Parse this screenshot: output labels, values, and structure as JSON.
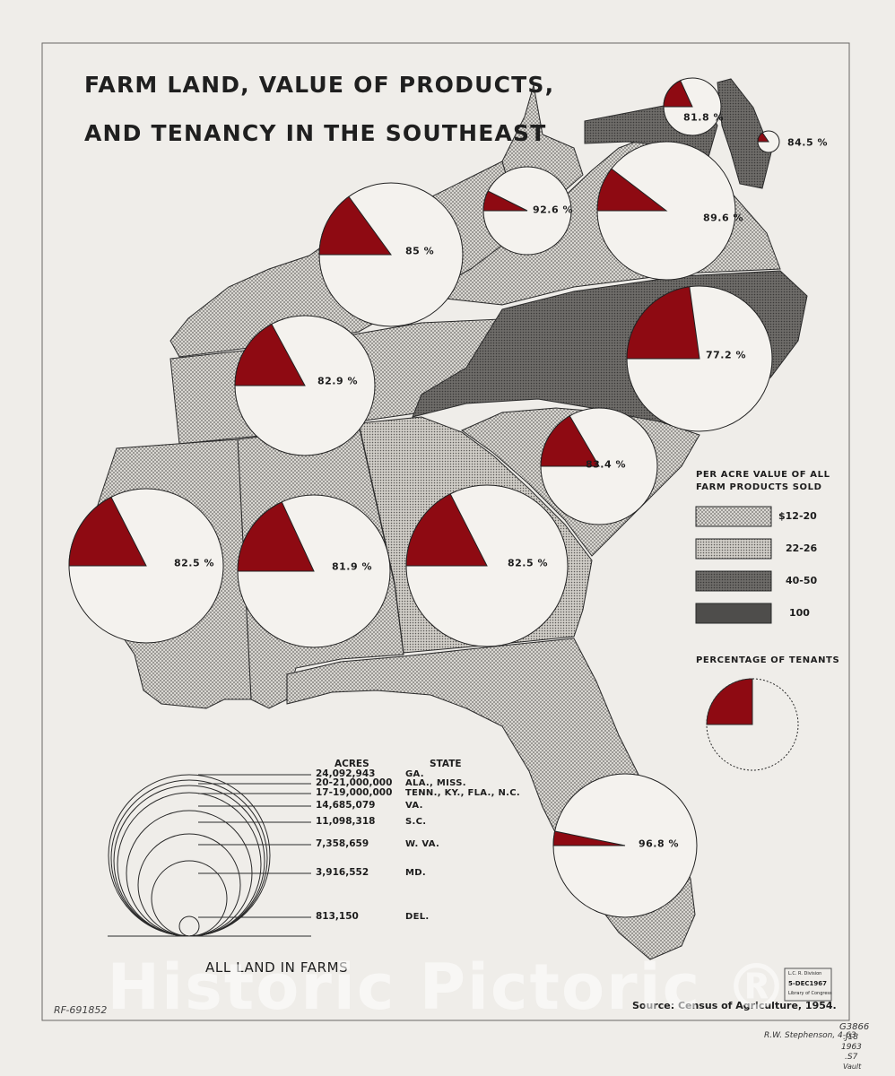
{
  "title": {
    "line1": "FARM LAND, VALUE OF PRODUCTS,",
    "line2": "AND TENANCY IN THE SOUTHEAST"
  },
  "tenancy_pies": [
    {
      "percent": "81.8 %",
      "value": 18.2
    },
    {
      "percent": "84.5 %",
      "value": 15.5
    },
    {
      "percent": "92.6 %",
      "value": 7.4
    },
    {
      "percent": "89.6 %",
      "value": 10.4
    },
    {
      "percent": "85 %",
      "value": 15
    },
    {
      "percent": "77.2 %",
      "value": 22.8
    },
    {
      "percent": "82.9 %",
      "value": 17.1
    },
    {
      "percent": "83.4 %",
      "value": 16.6
    },
    {
      "percent": "82.5 %",
      "value": 17.5
    },
    {
      "percent": "81.9 %",
      "value": 18.1
    },
    {
      "percent": "82.5 %",
      "value": 17.5
    },
    {
      "percent": "96.8 %",
      "value": 3.2
    }
  ],
  "value_legend": {
    "heading_line1": "PER ACRE VALUE OF ALL",
    "heading_line2": "FARM PRODUCTS SOLD",
    "items": [
      "$12-20",
      "22-26",
      "40-50",
      "100"
    ],
    "colors": [
      "#bdbab3",
      "#b6b3ac",
      "#7c7a77",
      "#4e4d4b"
    ]
  },
  "tenant_legend": {
    "heading": "PERCENTAGE OF TENANTS"
  },
  "farm_land_legend": {
    "acres_heading": "ACRES",
    "state_heading": "STATE",
    "rows": [
      {
        "acres": "24,092,943",
        "state": "GA."
      },
      {
        "acres": "20-21,000,000",
        "state": "ALA., MISS."
      },
      {
        "acres": "17-19,000,000",
        "state": "TENN., KY., FLA., N.C."
      },
      {
        "acres": "14,685,079",
        "state": "VA."
      },
      {
        "acres": "11,098,318",
        "state": "S.C."
      },
      {
        "acres": "7,358,659",
        "state": "W. VA."
      },
      {
        "acres": "3,916,552",
        "state": "MD."
      },
      {
        "acres": "813,150",
        "state": "DEL."
      }
    ],
    "caption": "ALL LAND IN FARMS"
  },
  "source": "Source: Census of Agriculture, 1954.",
  "stamp": {
    "line1": "L.C. R. Division",
    "line2": "5-DEC1967",
    "line3": "Library of Congress"
  },
  "handwritten": {
    "left": "RF-691852",
    "author": "R.W. Stephenson, 4-63",
    "call_number": [
      "G3866",
      ".J18",
      "1963",
      ".S7",
      "Vault"
    ]
  },
  "watermark": "Historic Pictoric ®",
  "colors": {
    "tenant_slice": "#8e0a12",
    "pie_fill": "#f4f2ee",
    "paper": "#efede9",
    "ink": "#1d1d1d"
  }
}
